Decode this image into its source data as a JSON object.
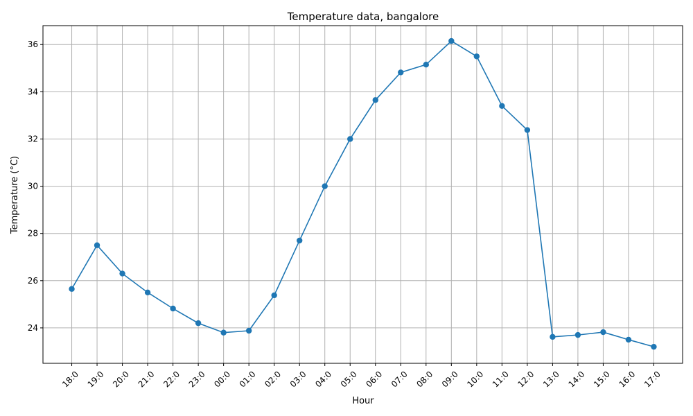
{
  "chart_data": {
    "type": "line",
    "title": "Temperature data, bangalore",
    "xlabel": "Hour",
    "ylabel": "Temperature (°C)",
    "categories": [
      "18:0",
      "19:0",
      "20:0",
      "21:0",
      "22:0",
      "23:0",
      "00:0",
      "01:0",
      "02:0",
      "03:0",
      "04:0",
      "05:0",
      "06:0",
      "07:0",
      "08:0",
      "09:0",
      "10:0",
      "11:0",
      "12:0",
      "13:0",
      "14:0",
      "15:0",
      "16:0",
      "17:0"
    ],
    "series": [
      {
        "values": [
          25.65,
          27.5,
          26.3,
          25.5,
          24.82,
          24.2,
          23.8,
          23.88,
          25.38,
          27.7,
          30.0,
          32.0,
          33.65,
          34.82,
          35.15,
          36.15,
          35.5,
          33.4,
          32.38,
          23.62,
          23.7,
          23.82,
          23.5,
          23.2
        ],
        "color": "#1f77b4",
        "marker": "circle"
      }
    ],
    "ylim": [
      22.5,
      36.8
    ],
    "yticks": [
      24,
      26,
      28,
      30,
      32,
      34,
      36
    ],
    "xtick_rotation": 45,
    "grid": true
  }
}
